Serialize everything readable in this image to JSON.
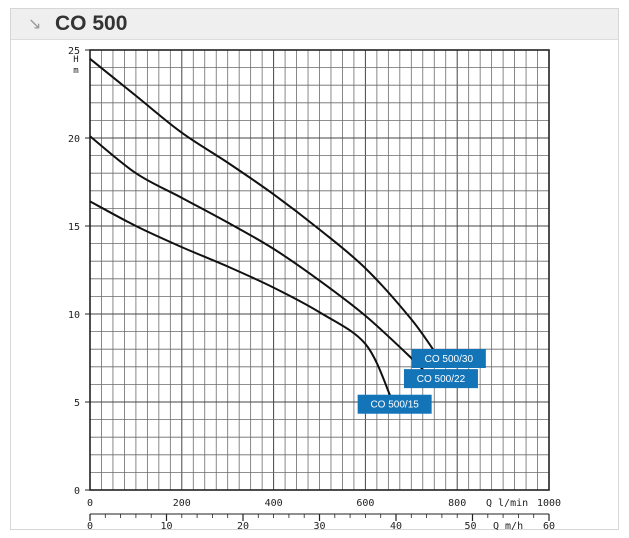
{
  "title": "CO 500",
  "header_icon": "arrow-down-right-icon",
  "chart_data": {
    "type": "line",
    "y_axis": {
      "label_lines": [
        "H",
        "m"
      ],
      "ticks": [
        0,
        5,
        10,
        15,
        20,
        25
      ],
      "range": [
        0,
        25
      ]
    },
    "x_axis_primary": {
      "label": "Q  l/min",
      "ticks": [
        0,
        200,
        400,
        600,
        800,
        1000
      ],
      "range": [
        0,
        1000
      ]
    },
    "x_axis_secondary": {
      "label": "Q  m/h",
      "ticks": [
        0,
        10,
        20,
        30,
        40,
        50,
        60
      ],
      "range": [
        0,
        60
      ]
    },
    "grid": true,
    "series": [
      {
        "name": "CO 500/30",
        "x": [
          0,
          100,
          200,
          300,
          400,
          500,
          600,
          700,
          760
        ],
        "y": [
          24.5,
          22.4,
          20.3,
          18.6,
          16.8,
          14.8,
          12.6,
          9.7,
          7.5
        ]
      },
      {
        "name": "CO 500/22",
        "x": [
          0,
          100,
          200,
          300,
          400,
          500,
          600,
          700,
          745
        ],
        "y": [
          20.1,
          18.0,
          16.6,
          15.2,
          13.7,
          11.9,
          9.9,
          7.5,
          6.3
        ]
      },
      {
        "name": "CO 500/15",
        "x": [
          0,
          100,
          200,
          300,
          400,
          500,
          600,
          655
        ],
        "y": [
          16.4,
          15.0,
          13.8,
          12.7,
          11.5,
          10.1,
          8.3,
          5.3
        ]
      }
    ],
    "label_color": "#1474b8"
  }
}
